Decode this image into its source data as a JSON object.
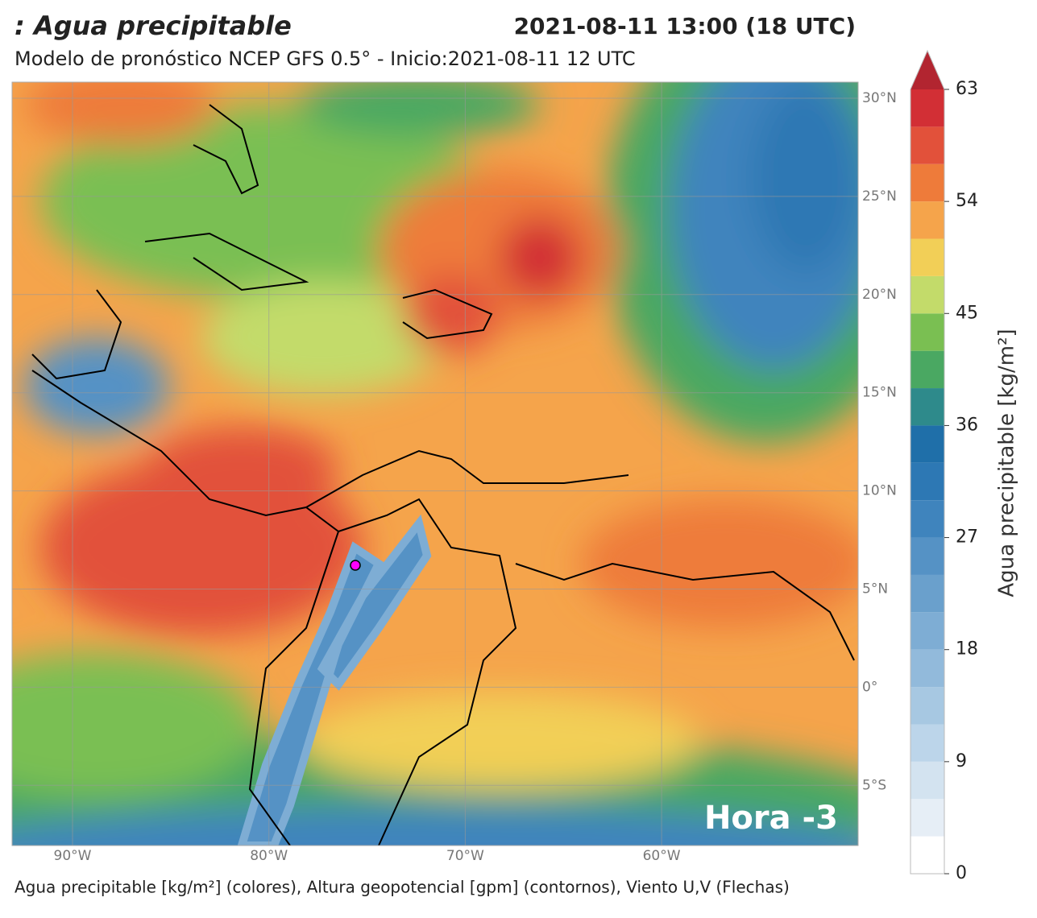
{
  "header": {
    "title": ": Agua precipitable",
    "datetime": "2021-08-11 13:00 (18 UTC)",
    "subtitle": "Modelo de pronóstico NCEP GFS 0.5° - Inicio:2021-08-11 12 UTC"
  },
  "map": {
    "lat_labels": [
      "30°N",
      "25°N",
      "20°N",
      "15°N",
      "10°N",
      "5°N",
      "0°",
      "5°S"
    ],
    "lon_labels": [
      "90°W",
      "80°W",
      "70°W",
      "60°W"
    ],
    "overlay": "Hora -3"
  },
  "colorbar": {
    "label": "Agua precipitable [kg/m²]",
    "range": [
      0,
      63
    ],
    "ticks": [
      0,
      9,
      18,
      27,
      36,
      45,
      54,
      63
    ],
    "colors": [
      "#ffffff",
      "#e6eef6",
      "#d3e3f0",
      "#bcd5ea",
      "#a7c8e2",
      "#92badb",
      "#7eadd4",
      "#6aa0cc",
      "#5592c5",
      "#3f84bd",
      "#2d78b4",
      "#1f6fa9",
      "#2e8a8b",
      "#4aa862",
      "#7abf52",
      "#c3db6a",
      "#f2cf57",
      "#f5a44b",
      "#ee7b3a",
      "#e2513a",
      "#d22f35",
      "#b22530"
    ]
  },
  "footer": "Agua precipitable [kg/m²] (colores), Altura geopotencial [gpm] (contornos), Viento U,V (Flechas)"
}
